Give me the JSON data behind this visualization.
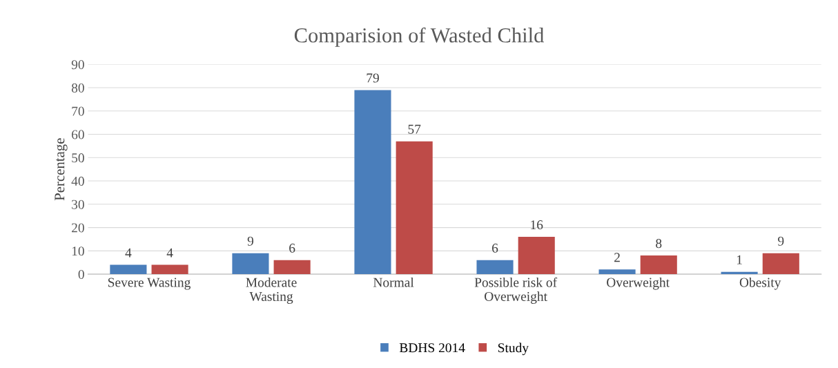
{
  "chart_data": {
    "type": "bar",
    "title": "Comparision of Wasted Child",
    "ylabel": "Percentage",
    "categories": [
      "Severe Wasting",
      "Moderate\nWasting",
      "Normal",
      "Possible risk of\nOverweight",
      "Overweight",
      "Obesity"
    ],
    "series": [
      {
        "name": "BDHS 2014",
        "color": "#4a7ebb",
        "values": [
          4,
          9,
          79,
          6,
          2,
          1
        ]
      },
      {
        "name": "Study",
        "color": "#be4b48",
        "values": [
          4,
          6,
          57,
          16,
          8,
          9
        ]
      }
    ],
    "ylim": [
      0,
      90
    ],
    "yticks": [
      0,
      10,
      20,
      30,
      40,
      50,
      60,
      70,
      80,
      90
    ],
    "grid": "y",
    "legend": "bottom",
    "data_labels": true
  }
}
